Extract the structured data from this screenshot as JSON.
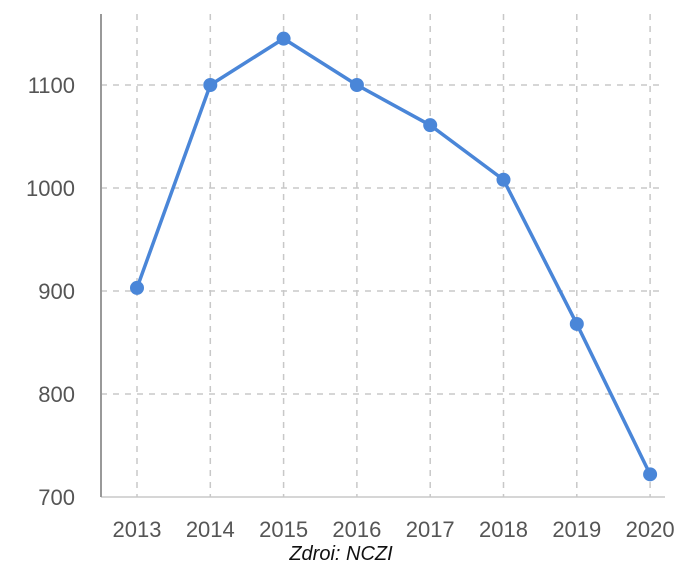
{
  "chart_data": {
    "type": "line",
    "x": [
      "2013",
      "2014",
      "2015",
      "2016",
      "2017",
      "2018",
      "2019",
      "2020"
    ],
    "series": [
      {
        "values": [
          903,
          1100,
          1145,
          1100,
          1061,
          1008,
          868,
          722
        ],
        "color": "#4a86d8"
      }
    ],
    "y_ticks": [
      700,
      800,
      900,
      1000,
      1100
    ],
    "ylim": [
      700,
      1160
    ],
    "grid": true,
    "grid_style": "dashed",
    "source": "Zdroi: NCZI"
  }
}
